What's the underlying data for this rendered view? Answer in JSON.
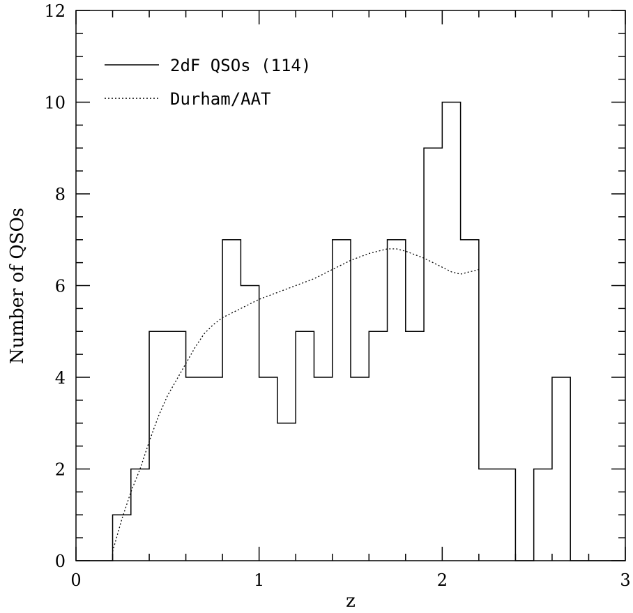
{
  "chart_data": {
    "type": "histogram",
    "xlabel": "z",
    "ylabel": "Number of QSOs",
    "xlim": [
      0,
      3
    ],
    "ylim": [
      0,
      12
    ],
    "x_ticks": [
      "0",
      "1",
      "2",
      "3"
    ],
    "y_ticks": [
      "0",
      "2",
      "4",
      "6",
      "8",
      "10",
      "12"
    ],
    "x_minor_step": 0.2,
    "y_minor_step": 0.5,
    "grid": false,
    "legend_position": "top-left",
    "series": [
      {
        "name": "2dF QSOs (114)",
        "style": "solid-step",
        "bin_width": 0.1,
        "bin_edges": [
          0.0,
          0.1,
          0.2,
          0.3,
          0.4,
          0.5,
          0.6,
          0.7,
          0.8,
          0.9,
          1.0,
          1.1,
          1.2,
          1.3,
          1.4,
          1.5,
          1.6,
          1.7,
          1.8,
          1.9,
          2.0,
          2.1,
          2.2,
          2.3,
          2.4,
          2.5,
          2.6,
          2.7,
          2.8,
          2.9,
          3.0
        ],
        "counts": [
          0,
          0,
          1,
          2,
          5,
          5,
          4,
          4,
          7,
          6,
          4,
          3,
          5,
          4,
          7,
          4,
          5,
          7,
          5,
          9,
          10,
          7,
          2,
          2,
          0,
          2,
          4,
          0,
          0,
          0
        ]
      },
      {
        "name": "Durham/AAT",
        "style": "dotted-curve",
        "x": [
          0.2,
          0.25,
          0.3,
          0.35,
          0.4,
          0.45,
          0.5,
          0.55,
          0.6,
          0.65,
          0.7,
          0.75,
          0.8,
          0.9,
          1.0,
          1.1,
          1.2,
          1.3,
          1.4,
          1.5,
          1.6,
          1.7,
          1.75,
          1.8,
          1.9,
          2.0,
          2.05,
          2.1,
          2.15,
          2.2
        ],
        "y": [
          0.2,
          0.9,
          1.5,
          2.0,
          2.6,
          3.15,
          3.6,
          3.95,
          4.3,
          4.65,
          4.95,
          5.15,
          5.3,
          5.5,
          5.7,
          5.85,
          6.0,
          6.15,
          6.35,
          6.55,
          6.7,
          6.8,
          6.8,
          6.75,
          6.6,
          6.4,
          6.3,
          6.25,
          6.3,
          6.35
        ]
      }
    ]
  }
}
